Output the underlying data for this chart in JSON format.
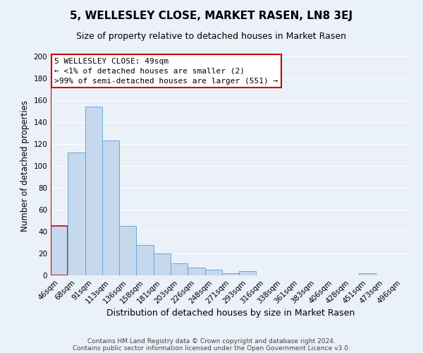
{
  "title": "5, WELLESLEY CLOSE, MARKET RASEN, LN8 3EJ",
  "subtitle": "Size of property relative to detached houses in Market Rasen",
  "xlabel": "Distribution of detached houses by size in Market Rasen",
  "ylabel": "Number of detached properties",
  "footer_line1": "Contains HM Land Registry data © Crown copyright and database right 2024.",
  "footer_line2": "Contains public sector information licensed under the Open Government Licence v3.0.",
  "annotation_title": "5 WELLESLEY CLOSE: 49sqm",
  "annotation_line2": "← <1% of detached houses are smaller (2)",
  "annotation_line3": ">99% of semi-detached houses are larger (551) →",
  "bar_labels": [
    "46sqm",
    "68sqm",
    "91sqm",
    "113sqm",
    "136sqm",
    "158sqm",
    "181sqm",
    "203sqm",
    "226sqm",
    "248sqm",
    "271sqm",
    "293sqm",
    "316sqm",
    "338sqm",
    "361sqm",
    "383sqm",
    "406sqm",
    "428sqm",
    "451sqm",
    "473sqm",
    "496sqm"
  ],
  "bar_values": [
    45,
    112,
    154,
    123,
    45,
    28,
    20,
    11,
    7,
    5,
    2,
    4,
    0,
    0,
    0,
    0,
    0,
    0,
    2,
    0,
    0
  ],
  "bar_color": "#c5d8ed",
  "bar_edge_color": "#6aaad4",
  "highlight_bar_index": 0,
  "highlight_edge_color": "#cc0000",
  "vline_color": "#cc0000",
  "ylim": [
    0,
    200
  ],
  "yticks": [
    0,
    20,
    40,
    60,
    80,
    100,
    120,
    140,
    160,
    180,
    200
  ],
  "background_color": "#eaf1f8",
  "plot_bg_color": "#eaf1f8",
  "grid_color": "#ffffff",
  "annotation_box_edge_color": "#cc0000",
  "annotation_box_face_color": "#ffffff",
  "title_fontsize": 11,
  "subtitle_fontsize": 9,
  "xlabel_fontsize": 9,
  "ylabel_fontsize": 8.5,
  "tick_fontsize": 7.5,
  "annotation_fontsize": 8,
  "footer_fontsize": 6.5
}
